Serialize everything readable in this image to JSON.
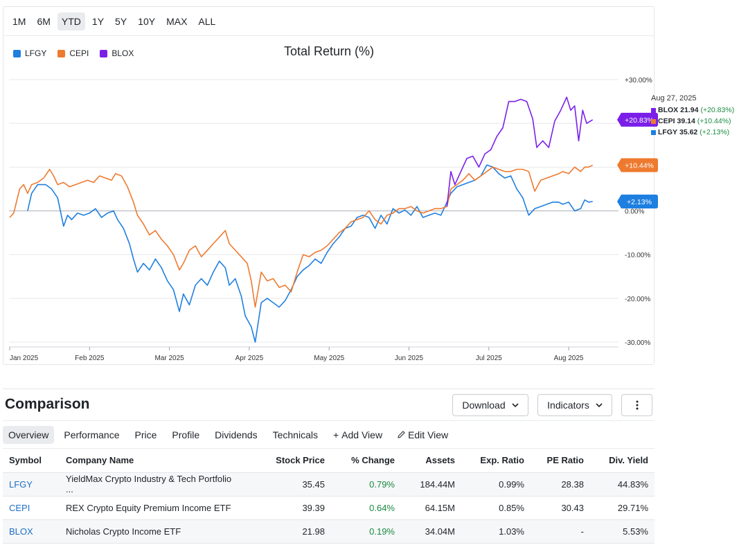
{
  "range_buttons": [
    "1M",
    "6M",
    "YTD",
    "1Y",
    "5Y",
    "10Y",
    "MAX",
    "ALL"
  ],
  "active_range": "YTD",
  "chart": {
    "colors": {
      "LFGY": "#1e7fe0",
      "CEPI": "#ee7a30",
      "BLOX": "#7a1fe8"
    },
    "hover": {
      "date": "Aug 27, 2025",
      "rows": [
        {
          "symbol": "BLOX",
          "price": "21.94",
          "change": "(+20.83%)",
          "color": "#7a1fe8"
        },
        {
          "symbol": "CEPI",
          "price": "39.14",
          "change": "(+10.44%)",
          "color": "#ee7a30"
        },
        {
          "symbol": "LFGY",
          "price": "35.62",
          "change": "(+2.13%)",
          "color": "#1e7fe0"
        }
      ]
    }
  },
  "chart_data": {
    "type": "line",
    "title": "Total Return (%)",
    "xlabel": "",
    "ylabel": "",
    "ylim": [
      -30,
      30
    ],
    "y_ticks": [
      "+30.00%",
      "+20.00%",
      "+10.00%",
      "0.00%",
      "-10.00%",
      "-20.00%",
      "-30.00%"
    ],
    "x_ticks": [
      "Jan 2025",
      "Feb 2025",
      "Mar 2025",
      "Apr 2025",
      "May 2025",
      "Jun 2025",
      "Jul 2025",
      "Aug 2025"
    ],
    "legend_position": "top-left",
    "grid": true,
    "series": [
      {
        "name": "LFGY",
        "end_label": "+2.13%",
        "points": [
          [
            0.45,
            0
          ],
          [
            0.55,
            4
          ],
          [
            0.7,
            6
          ],
          [
            0.9,
            6
          ],
          [
            1.05,
            5
          ],
          [
            1.2,
            3
          ],
          [
            1.35,
            -3.5
          ],
          [
            1.45,
            -1
          ],
          [
            1.55,
            -2
          ],
          [
            1.7,
            -0.5
          ],
          [
            1.85,
            -1
          ],
          [
            2.0,
            -0.5
          ],
          [
            2.15,
            0.5
          ],
          [
            2.3,
            -1.5
          ],
          [
            2.45,
            -0.5
          ],
          [
            2.6,
            0
          ],
          [
            2.7,
            -2
          ],
          [
            2.85,
            -4
          ],
          [
            3.0,
            -7.5
          ],
          [
            3.1,
            -11
          ],
          [
            3.2,
            -14
          ],
          [
            3.35,
            -12
          ],
          [
            3.5,
            -13.5
          ],
          [
            3.65,
            -11
          ],
          [
            3.8,
            -13
          ],
          [
            3.95,
            -16
          ],
          [
            4.1,
            -18
          ],
          [
            4.25,
            -23
          ],
          [
            4.35,
            -19
          ],
          [
            4.5,
            -21.5
          ],
          [
            4.65,
            -17
          ],
          [
            4.8,
            -15.5
          ],
          [
            4.95,
            -17
          ],
          [
            5.1,
            -14
          ],
          [
            5.25,
            -11.5
          ],
          [
            5.4,
            -13
          ],
          [
            5.5,
            -17
          ],
          [
            5.65,
            -15.5
          ],
          [
            5.8,
            -19.5
          ],
          [
            5.9,
            -24
          ],
          [
            6.05,
            -26.5
          ],
          [
            6.15,
            -30
          ],
          [
            6.3,
            -21
          ],
          [
            6.45,
            -20
          ],
          [
            6.6,
            -21
          ],
          [
            6.75,
            -22
          ],
          [
            6.9,
            -20.5
          ],
          [
            7.05,
            -18
          ],
          [
            7.2,
            -15
          ],
          [
            7.35,
            -13.5
          ],
          [
            7.5,
            -12.5
          ],
          [
            7.65,
            -11
          ],
          [
            7.8,
            -12
          ],
          [
            7.95,
            -9.5
          ],
          [
            8.1,
            -7.5
          ],
          [
            8.25,
            -6
          ],
          [
            8.4,
            -4
          ],
          [
            8.55,
            -3.5
          ],
          [
            8.7,
            -1.5
          ],
          [
            8.85,
            -1
          ],
          [
            9.0,
            -1.5
          ],
          [
            9.15,
            -4
          ],
          [
            9.3,
            -1
          ],
          [
            9.45,
            -3
          ],
          [
            9.6,
            0.5
          ],
          [
            9.75,
            -0.5
          ],
          [
            9.9,
            0.2
          ],
          [
            10.05,
            -1
          ],
          [
            10.2,
            1
          ],
          [
            10.35,
            -1.5
          ],
          [
            10.5,
            -1
          ],
          [
            10.65,
            -0.5
          ],
          [
            10.8,
            -1
          ],
          [
            10.95,
            2
          ],
          [
            11.05,
            4
          ],
          [
            11.2,
            5.5
          ],
          [
            11.35,
            6
          ],
          [
            11.5,
            6.5
          ],
          [
            11.65,
            7
          ],
          [
            11.8,
            8
          ],
          [
            11.95,
            10.5
          ],
          [
            12.1,
            10
          ],
          [
            12.25,
            8.5
          ],
          [
            12.4,
            7.5
          ],
          [
            12.55,
            8
          ],
          [
            12.7,
            5
          ],
          [
            12.85,
            3
          ],
          [
            13.0,
            -1
          ],
          [
            13.15,
            0.5
          ],
          [
            13.3,
            1
          ],
          [
            13.45,
            1.5
          ],
          [
            13.6,
            2
          ],
          [
            13.75,
            2
          ],
          [
            13.85,
            1.5
          ],
          [
            14.0,
            2
          ],
          [
            14.15,
            0
          ],
          [
            14.3,
            0.5
          ],
          [
            14.4,
            2.5
          ],
          [
            14.5,
            2
          ],
          [
            14.6,
            2.13
          ]
        ]
      },
      {
        "name": "CEPI",
        "end_label": "+10.44%",
        "points": [
          [
            0,
            -1.5
          ],
          [
            0.1,
            -0.5
          ],
          [
            0.25,
            5
          ],
          [
            0.35,
            6
          ],
          [
            0.45,
            4
          ],
          [
            0.55,
            6
          ],
          [
            0.7,
            6.5
          ],
          [
            0.85,
            7.5
          ],
          [
            1.0,
            9.5
          ],
          [
            1.1,
            8
          ],
          [
            1.2,
            6
          ],
          [
            1.35,
            6.5
          ],
          [
            1.5,
            5.5
          ],
          [
            1.65,
            6
          ],
          [
            1.8,
            6.5
          ],
          [
            1.95,
            7
          ],
          [
            2.1,
            6.5
          ],
          [
            2.25,
            8
          ],
          [
            2.4,
            7.5
          ],
          [
            2.55,
            7
          ],
          [
            2.65,
            8.5
          ],
          [
            2.8,
            8
          ],
          [
            2.95,
            5.5
          ],
          [
            3.1,
            2
          ],
          [
            3.2,
            -1
          ],
          [
            3.35,
            -3
          ],
          [
            3.5,
            -5.5
          ],
          [
            3.65,
            -4.5
          ],
          [
            3.8,
            -6.5
          ],
          [
            3.95,
            -8
          ],
          [
            4.1,
            -10
          ],
          [
            4.25,
            -13.5
          ],
          [
            4.35,
            -12
          ],
          [
            4.5,
            -9
          ],
          [
            4.65,
            -8
          ],
          [
            4.8,
            -10.5
          ],
          [
            4.95,
            -9
          ],
          [
            5.1,
            -7.5
          ],
          [
            5.25,
            -6
          ],
          [
            5.4,
            -4.5
          ],
          [
            5.5,
            -7.5
          ],
          [
            5.65,
            -9
          ],
          [
            5.8,
            -10.5
          ],
          [
            5.95,
            -12
          ],
          [
            6.05,
            -16
          ],
          [
            6.15,
            -22
          ],
          [
            6.3,
            -14
          ],
          [
            6.45,
            -16
          ],
          [
            6.6,
            -15.5
          ],
          [
            6.75,
            -17.5
          ],
          [
            6.9,
            -17
          ],
          [
            7.05,
            -18.5
          ],
          [
            7.2,
            -14
          ],
          [
            7.35,
            -10
          ],
          [
            7.5,
            -10.5
          ],
          [
            7.65,
            -9.5
          ],
          [
            7.8,
            -9
          ],
          [
            7.95,
            -8
          ],
          [
            8.1,
            -6.5
          ],
          [
            8.25,
            -5
          ],
          [
            8.4,
            -4
          ],
          [
            8.55,
            -2.5
          ],
          [
            8.7,
            -2
          ],
          [
            8.85,
            -1.5
          ],
          [
            9.0,
            0
          ],
          [
            9.15,
            -2
          ],
          [
            9.3,
            -3
          ],
          [
            9.45,
            -1
          ],
          [
            9.6,
            -0.5
          ],
          [
            9.75,
            0.5
          ],
          [
            9.9,
            0.5
          ],
          [
            10.05,
            1
          ],
          [
            10.2,
            0
          ],
          [
            10.35,
            -0.5
          ],
          [
            10.5,
            0
          ],
          [
            10.65,
            0.5
          ],
          [
            10.8,
            0.5
          ],
          [
            10.95,
            1
          ],
          [
            11.05,
            5
          ],
          [
            11.2,
            6
          ],
          [
            11.35,
            7
          ],
          [
            11.5,
            8.5
          ],
          [
            11.65,
            7
          ],
          [
            11.8,
            8
          ],
          [
            11.95,
            9
          ],
          [
            12.1,
            10
          ],
          [
            12.25,
            9.5
          ],
          [
            12.4,
            9
          ],
          [
            12.55,
            9
          ],
          [
            12.7,
            9.5
          ],
          [
            12.85,
            9.5
          ],
          [
            13.0,
            9
          ],
          [
            13.15,
            4.5
          ],
          [
            13.3,
            7
          ],
          [
            13.45,
            7.5
          ],
          [
            13.6,
            8
          ],
          [
            13.75,
            8.5
          ],
          [
            13.85,
            9
          ],
          [
            14.0,
            8.5
          ],
          [
            14.15,
            10
          ],
          [
            14.3,
            9
          ],
          [
            14.4,
            10
          ],
          [
            14.5,
            10
          ],
          [
            14.6,
            10.44
          ]
        ]
      },
      {
        "name": "BLOX",
        "end_label": "+20.83%",
        "points": [
          [
            10.95,
            1
          ],
          [
            11.05,
            9
          ],
          [
            11.15,
            6
          ],
          [
            11.3,
            9
          ],
          [
            11.45,
            12
          ],
          [
            11.6,
            12.5
          ],
          [
            11.75,
            10
          ],
          [
            11.9,
            13
          ],
          [
            12.05,
            14
          ],
          [
            12.2,
            17
          ],
          [
            12.35,
            19
          ],
          [
            12.5,
            25
          ],
          [
            12.65,
            25
          ],
          [
            12.8,
            25.5
          ],
          [
            12.95,
            25
          ],
          [
            13.1,
            21
          ],
          [
            13.2,
            14.5
          ],
          [
            13.35,
            16
          ],
          [
            13.5,
            14.5
          ],
          [
            13.65,
            20.5
          ],
          [
            13.8,
            23
          ],
          [
            13.95,
            26
          ],
          [
            14.05,
            23
          ],
          [
            14.15,
            24
          ],
          [
            14.25,
            16
          ],
          [
            14.35,
            23
          ],
          [
            14.45,
            20
          ],
          [
            14.6,
            20.83
          ]
        ]
      }
    ]
  },
  "comparison": {
    "title": "Comparison",
    "download_label": "Download",
    "indicators_label": "Indicators",
    "tabs": [
      "Overview",
      "Performance",
      "Price",
      "Profile",
      "Dividends",
      "Technicals"
    ],
    "add_view_label": "Add View",
    "edit_view_label": "Edit View",
    "columns": [
      "Symbol",
      "Company Name",
      "Stock Price",
      "% Change",
      "Assets",
      "Exp. Ratio",
      "PE Ratio",
      "Div. Yield"
    ],
    "rows": [
      [
        "LFGY",
        "YieldMax Crypto Industry & Tech Portfolio ...",
        "35.45",
        "0.79%",
        "184.44M",
        "0.99%",
        "28.38",
        "44.83%"
      ],
      [
        "CEPI",
        "REX Crypto Equity Premium Income ETF",
        "39.39",
        "0.64%",
        "64.15M",
        "0.85%",
        "30.43",
        "29.71%"
      ],
      [
        "BLOX",
        "Nicholas Crypto Income ETF",
        "21.98",
        "0.19%",
        "34.04M",
        "1.03%",
        "-",
        "5.53%"
      ]
    ]
  }
}
